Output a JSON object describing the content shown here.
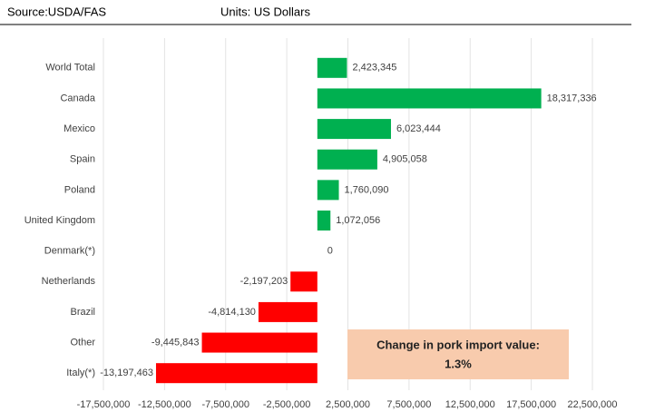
{
  "chart_data": {
    "type": "hbar",
    "source": "Source:USDA/FAS",
    "units": "Units: US Dollars",
    "categories": [
      "World Total",
      "Canada",
      "Mexico",
      "Spain",
      "Poland",
      "United Kingdom",
      "Denmark(*)",
      "Netherlands",
      "Brazil",
      "Other",
      "Italy(*)"
    ],
    "values": [
      2423345,
      18317336,
      6023444,
      4905058,
      1760090,
      1072056,
      0,
      -2197203,
      -4814130,
      -9445843,
      -13197463
    ],
    "value_labels": [
      "2,423,345",
      "18,317,336",
      "6,023,444",
      "4,905,058",
      "1,760,090",
      "1,072,056",
      "0",
      "-2,197,203",
      "-4,814,130",
      "-9,445,843",
      "-13,197,463"
    ],
    "color": "#00b050",
    "negative_color": "#ff0000",
    "xlim": [
      -17500000,
      22500000
    ],
    "xticks": [
      {
        "value": -17500000,
        "label": "-17,500,000"
      },
      {
        "value": -12500000,
        "label": "-12,500,000"
      },
      {
        "value": -7500000,
        "label": "-7,500,000"
      },
      {
        "value": -2500000,
        "label": "-2,500,000"
      },
      {
        "value": 2500000,
        "label": "2,500,000"
      },
      {
        "value": 7500000,
        "label": "7,500,000"
      },
      {
        "value": 12500000,
        "label": "12,500,000"
      },
      {
        "value": 17500000,
        "label": "17,500,000"
      },
      {
        "value": 22500000,
        "label": "22,500,000"
      }
    ],
    "grid": true,
    "annotation": [
      "Change in pork import value:",
      "1.3%"
    ]
  }
}
